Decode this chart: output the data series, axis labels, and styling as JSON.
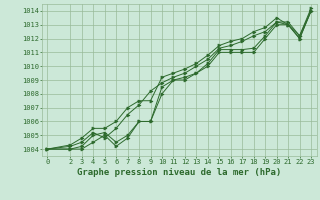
{
  "title": "Graphe pression niveau de la mer (hPa)",
  "xlim": [
    -0.5,
    23.5
  ],
  "ylim": [
    1003.5,
    1014.5
  ],
  "yticks": [
    1004,
    1005,
    1006,
    1007,
    1008,
    1009,
    1010,
    1011,
    1012,
    1013,
    1014
  ],
  "xticks": [
    0,
    2,
    3,
    4,
    5,
    6,
    7,
    8,
    9,
    10,
    11,
    12,
    13,
    14,
    15,
    16,
    17,
    18,
    19,
    20,
    21,
    22,
    23
  ],
  "line1": {
    "x": [
      0,
      2,
      3,
      4,
      5,
      6,
      7,
      8,
      9,
      10,
      11,
      12,
      13,
      14,
      15,
      16,
      17,
      18,
      19,
      20,
      21,
      22,
      23
    ],
    "y": [
      1004.0,
      1004.0,
      1004.0,
      1004.5,
      1005.0,
      1004.2,
      1004.8,
      1006.0,
      1006.0,
      1008.0,
      1009.0,
      1009.0,
      1009.5,
      1010.0,
      1011.0,
      1011.0,
      1011.0,
      1011.0,
      1012.0,
      1013.0,
      1013.0,
      1012.0,
      1014.0
    ]
  },
  "line2": {
    "x": [
      0,
      2,
      3,
      4,
      5,
      6,
      7,
      8,
      9,
      10,
      11,
      12,
      13,
      14,
      15,
      16,
      17,
      18,
      19,
      20,
      21,
      22,
      23
    ],
    "y": [
      1004.0,
      1004.0,
      1004.2,
      1005.0,
      1005.2,
      1004.5,
      1005.0,
      1006.0,
      1006.0,
      1008.5,
      1009.0,
      1009.2,
      1009.5,
      1010.2,
      1011.2,
      1011.2,
      1011.2,
      1011.3,
      1012.2,
      1013.2,
      1013.2,
      1012.2,
      1014.2
    ]
  },
  "line3": {
    "x": [
      0,
      2,
      3,
      4,
      5,
      6,
      7,
      8,
      9,
      10,
      11,
      12,
      13,
      14,
      15,
      16,
      17,
      18,
      19,
      20,
      21,
      22,
      23
    ],
    "y": [
      1004.0,
      1004.2,
      1004.5,
      1005.2,
      1004.8,
      1005.5,
      1006.5,
      1007.2,
      1008.2,
      1008.8,
      1009.2,
      1009.5,
      1010.0,
      1010.5,
      1011.3,
      1011.5,
      1011.8,
      1012.2,
      1012.5,
      1013.2,
      1013.0,
      1012.2,
      1014.0
    ]
  },
  "line4": {
    "x": [
      0,
      2,
      3,
      4,
      5,
      6,
      7,
      8,
      9,
      10,
      11,
      12,
      13,
      14,
      15,
      16,
      17,
      18,
      19,
      20,
      21,
      22,
      23
    ],
    "y": [
      1004.0,
      1004.3,
      1004.8,
      1005.5,
      1005.5,
      1006.0,
      1007.0,
      1007.5,
      1007.5,
      1009.2,
      1009.5,
      1009.8,
      1010.2,
      1010.8,
      1011.5,
      1011.8,
      1012.0,
      1012.5,
      1012.8,
      1013.5,
      1013.0,
      1012.0,
      1014.0
    ]
  },
  "line_color": "#2d6a2d",
  "bg_color": "#cce8d8",
  "grid_color": "#99bb99",
  "title_fontsize": 6.5,
  "tick_fontsize": 5.0
}
